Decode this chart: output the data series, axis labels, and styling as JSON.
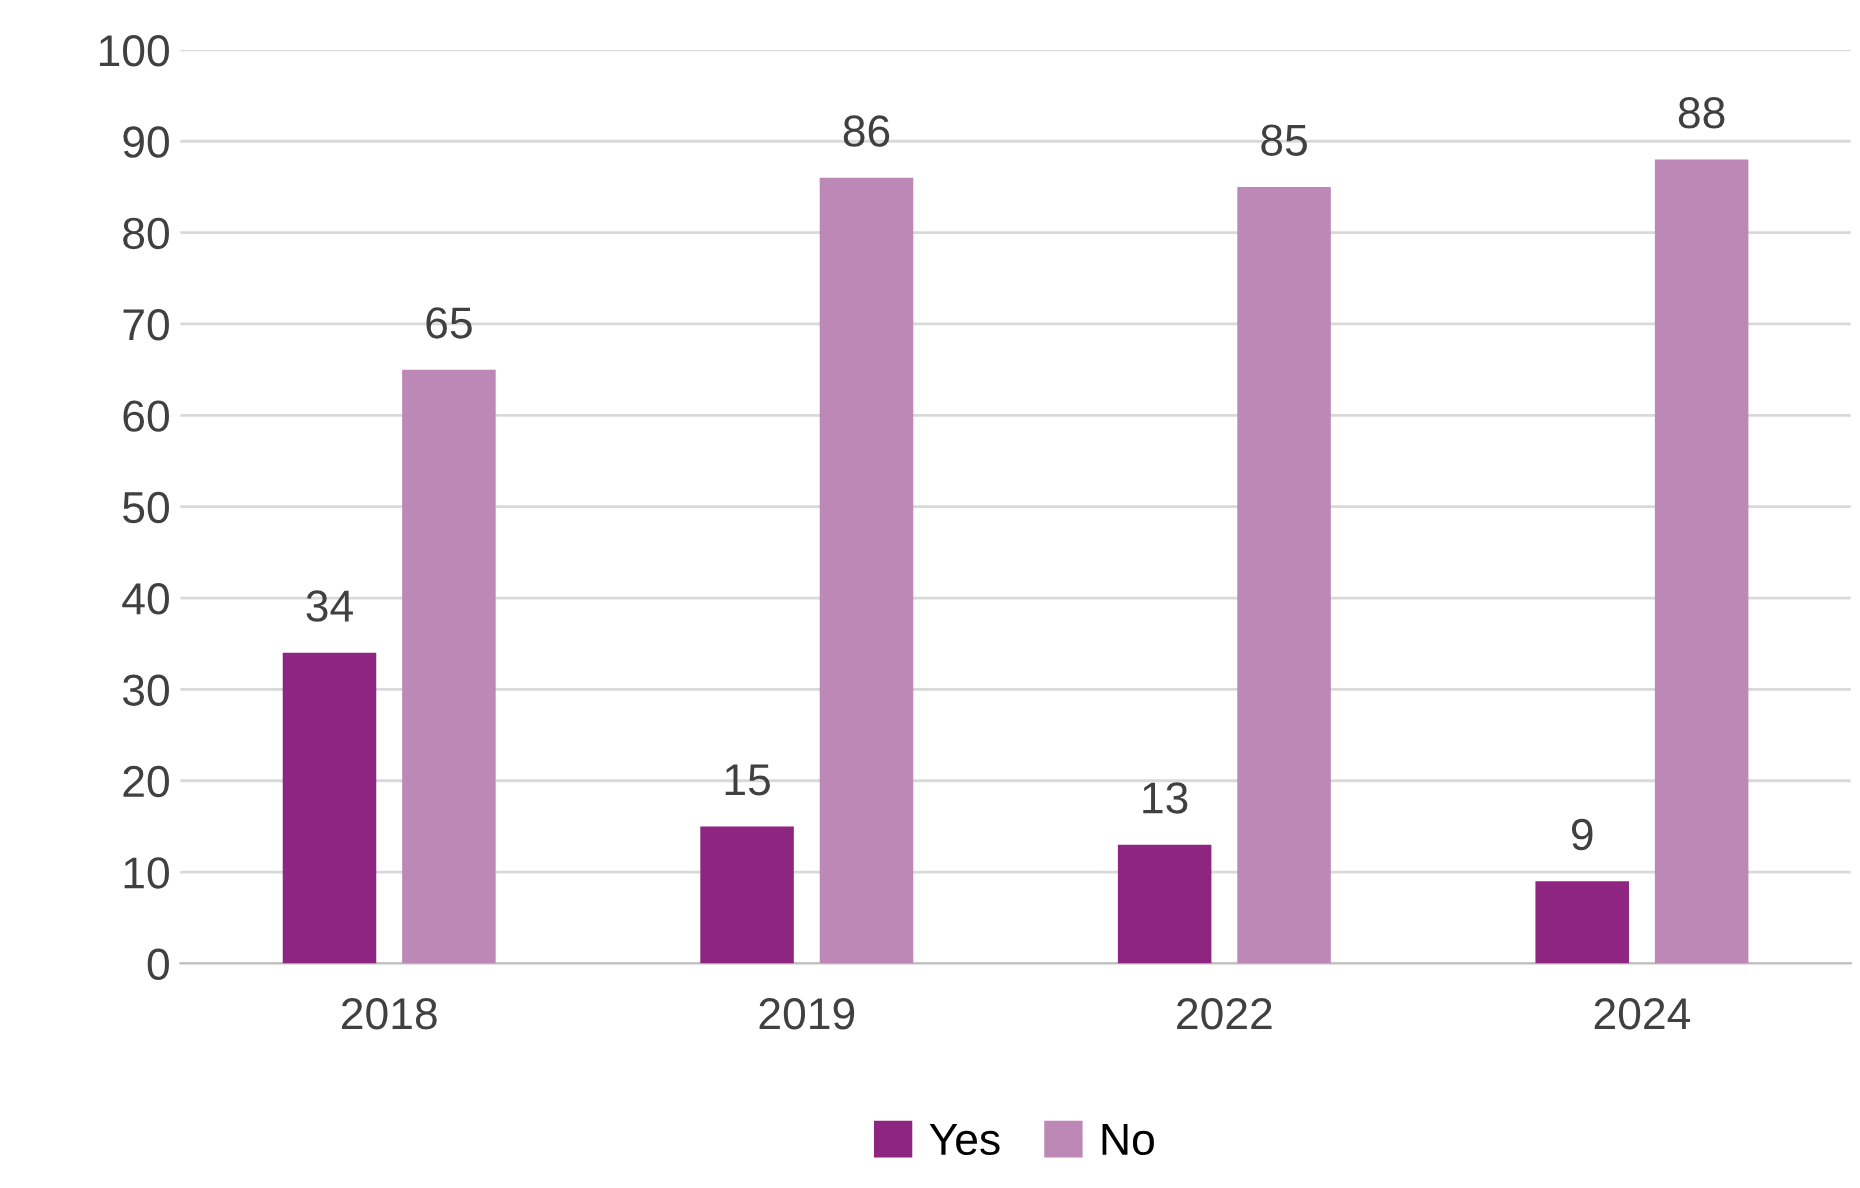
{
  "chart_data": {
    "type": "bar",
    "categories": [
      "2018",
      "2019",
      "2022",
      "2024"
    ],
    "series": [
      {
        "name": "Yes",
        "color": "#8e2581",
        "values": [
          34,
          15,
          13,
          9
        ]
      },
      {
        "name": "No",
        "color": "#bd88b6",
        "values": [
          65,
          86,
          85,
          88
        ]
      }
    ],
    "ylim": [
      0,
      100
    ],
    "yticks": [
      0,
      10,
      20,
      30,
      40,
      50,
      60,
      70,
      80,
      90,
      100
    ],
    "grid": "y",
    "legend": "bottom",
    "data_labels": true
  }
}
